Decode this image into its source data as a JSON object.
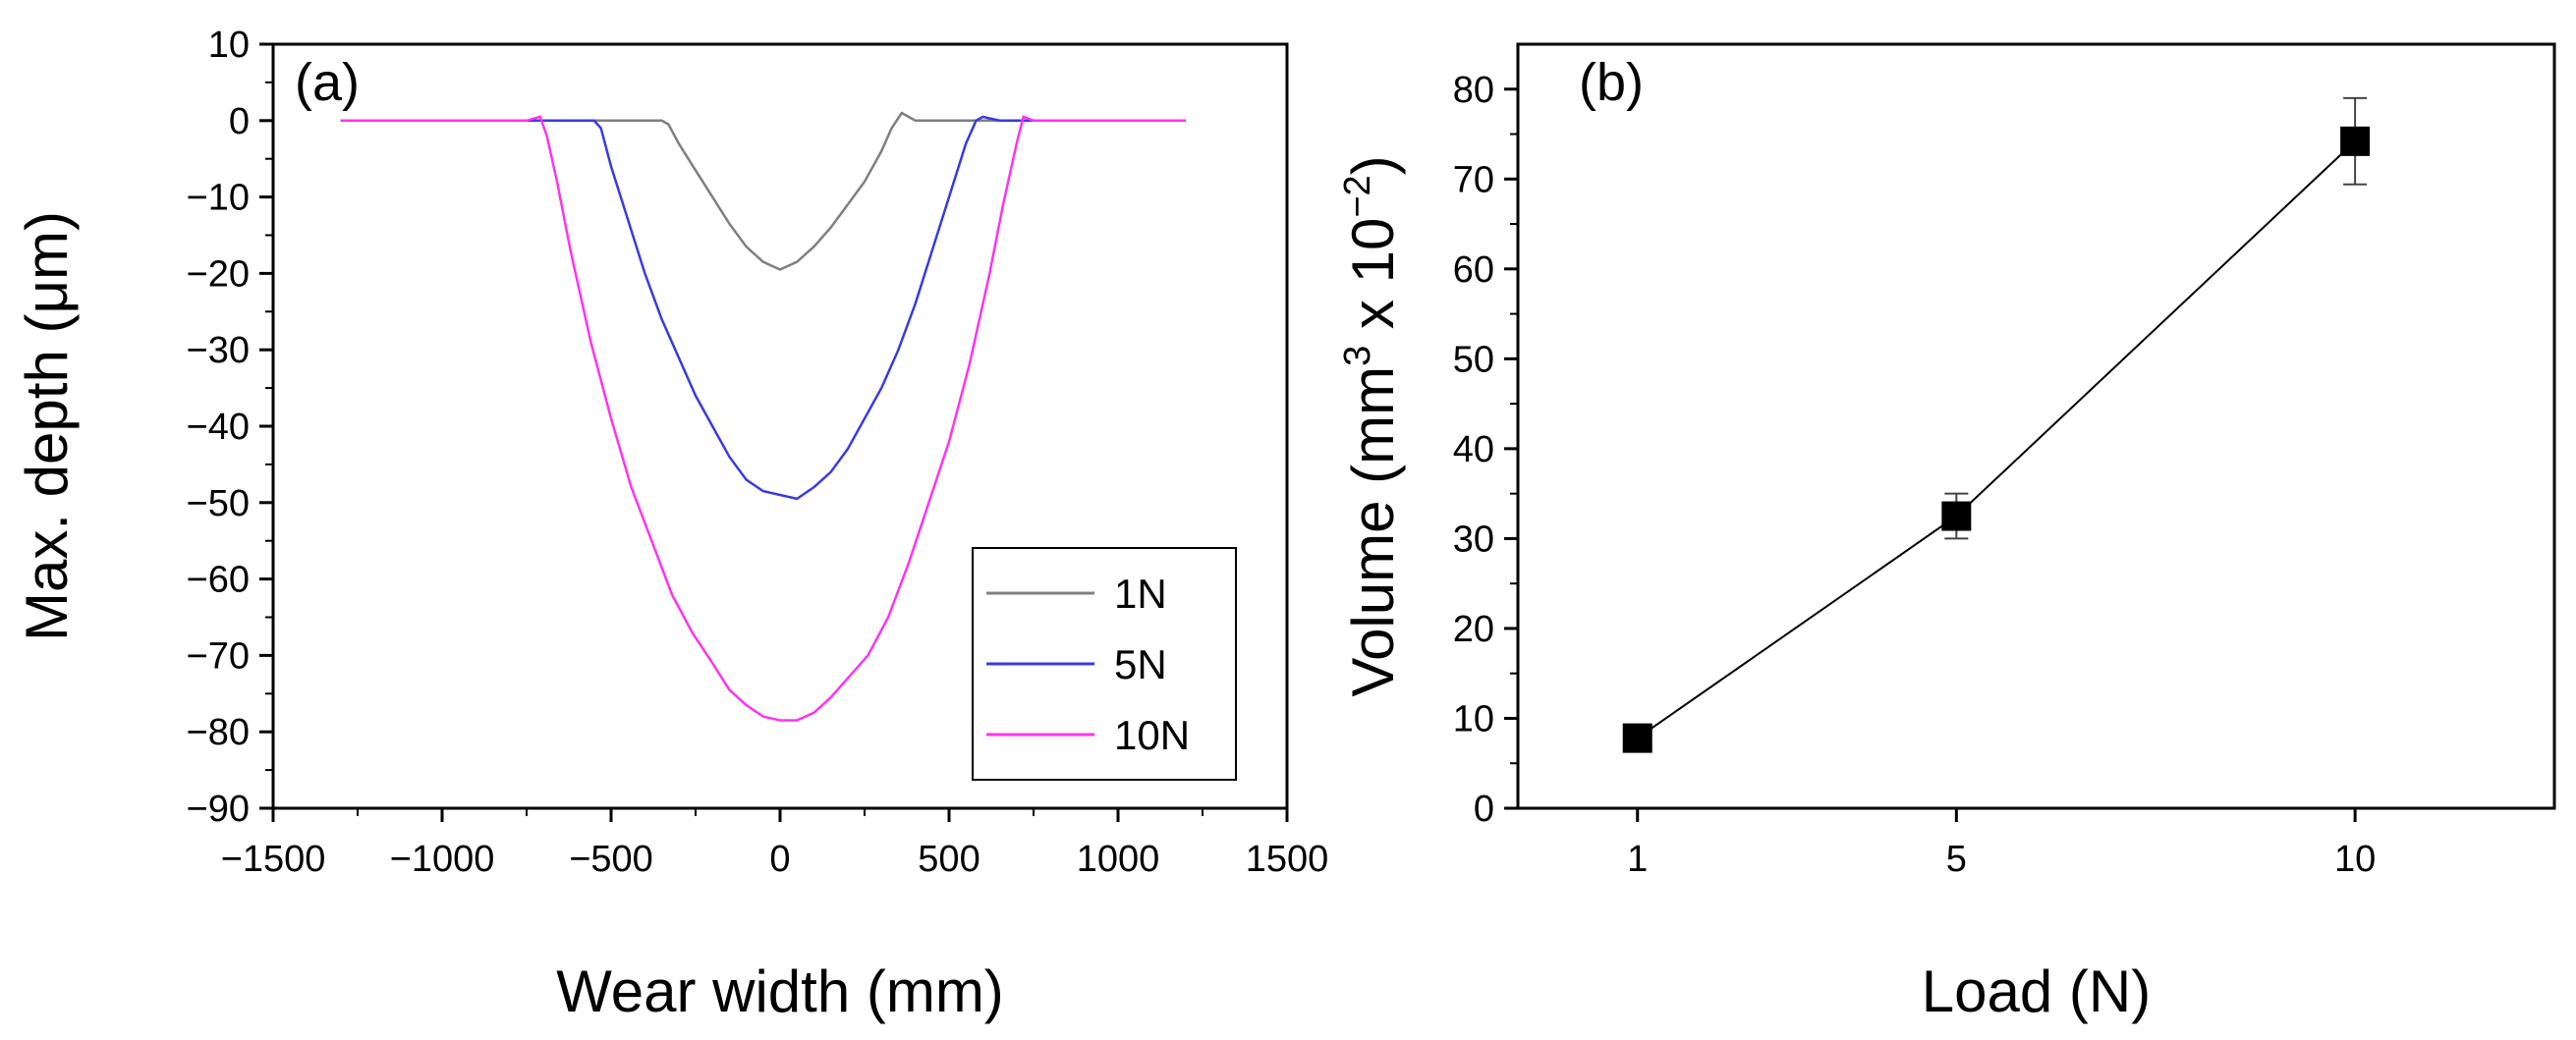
{
  "chart_data": [
    {
      "panel_label": "(a)",
      "type": "line",
      "xlabel": "Wear width (mm)",
      "ylabel": "Max. depth (μm)",
      "xlim": [
        -1500,
        1500
      ],
      "ylim": [
        -90,
        10
      ],
      "xticks": [
        -1500,
        -1000,
        -500,
        0,
        500,
        1000,
        1500
      ],
      "xtick_labels": [
        "−1500",
        "−1000",
        "−500",
        "0",
        "500",
        "1000",
        "1500"
      ],
      "yticks": [
        10,
        0,
        -10,
        -20,
        -30,
        -40,
        -50,
        -60,
        -70,
        -80,
        -90
      ],
      "ytick_labels": [
        "10",
        "0",
        "−10",
        "−20",
        "−30",
        "−40",
        "−50",
        "−60",
        "−70",
        "−80",
        "−90"
      ],
      "legend_position": "bottom-right",
      "series": [
        {
          "name": "1N",
          "color": "#7f7f7f",
          "x": [
            -1300,
            -600,
            -350,
            -330,
            -300,
            -250,
            -200,
            -150,
            -100,
            -50,
            0,
            50,
            100,
            150,
            200,
            250,
            300,
            330,
            360,
            380,
            400,
            600,
            1200
          ],
          "y": [
            0,
            0,
            0,
            -0.5,
            -3,
            -6.5,
            -10,
            -13.5,
            -16.5,
            -18.5,
            -19.5,
            -18.5,
            -16.5,
            -14,
            -11,
            -8,
            -4,
            -1,
            1,
            0.5,
            0,
            0,
            0
          ]
        },
        {
          "name": "5N",
          "color": "#3a3adf",
          "x": [
            -1300,
            -650,
            -550,
            -530,
            -500,
            -450,
            -400,
            -350,
            -300,
            -250,
            -200,
            -150,
            -100,
            -50,
            0,
            50,
            100,
            150,
            200,
            250,
            300,
            350,
            400,
            450,
            500,
            550,
            580,
            600,
            650,
            700,
            1200
          ],
          "y": [
            0,
            0,
            0,
            -1,
            -6,
            -13,
            -20,
            -26,
            -31,
            -36,
            -40,
            -44,
            -47,
            -48.5,
            -49,
            -49.5,
            -48,
            -46,
            -43,
            -39,
            -35,
            -30,
            -24,
            -17,
            -10,
            -3,
            0,
            0.5,
            0,
            0,
            0
          ]
        },
        {
          "name": "10N",
          "color": "#ff33ee",
          "x": [
            -1300,
            -750,
            -710,
            -690,
            -660,
            -620,
            -560,
            -500,
            -440,
            -380,
            -320,
            -260,
            -200,
            -150,
            -100,
            -50,
            0,
            50,
            100,
            150,
            200,
            260,
            320,
            380,
            440,
            500,
            560,
            620,
            660,
            700,
            720,
            750,
            1200
          ],
          "y": [
            0,
            0,
            0.5,
            -2,
            -8,
            -17,
            -29,
            -39,
            -48,
            -55,
            -62,
            -67,
            -71,
            -74.5,
            -76.5,
            -78,
            -78.5,
            -78.5,
            -77.5,
            -75.5,
            -73,
            -70,
            -65,
            -58,
            -50,
            -42,
            -32,
            -20,
            -11,
            -3,
            0.5,
            0,
            0
          ]
        }
      ]
    },
    {
      "panel_label": "(b)",
      "type": "line",
      "xlabel": "Load (N)",
      "ylabel_prefix": "Volume (mm",
      "ylabel_sup1": "3",
      "ylabel_middle": " x 10",
      "ylabel_sup2": "−2",
      "ylabel_suffix": ")",
      "xlim": [
        -0.5,
        12.5
      ],
      "ylim": [
        0,
        85
      ],
      "categories": [
        "1",
        "5",
        "10"
      ],
      "x": [
        1,
        5,
        10
      ],
      "xticks": [
        1,
        5,
        10
      ],
      "yticks": [
        0,
        10,
        20,
        30,
        40,
        50,
        60,
        70,
        80
      ],
      "ytick_labels": [
        "0",
        "10",
        "20",
        "30",
        "40",
        "50",
        "60",
        "70",
        "80"
      ],
      "series": [
        {
          "name": "Volume",
          "color": "#000000",
          "marker": "square",
          "values": [
            7.8,
            32.5,
            74.2
          ],
          "errors": [
            0.5,
            2.5,
            4.8
          ]
        }
      ]
    }
  ]
}
